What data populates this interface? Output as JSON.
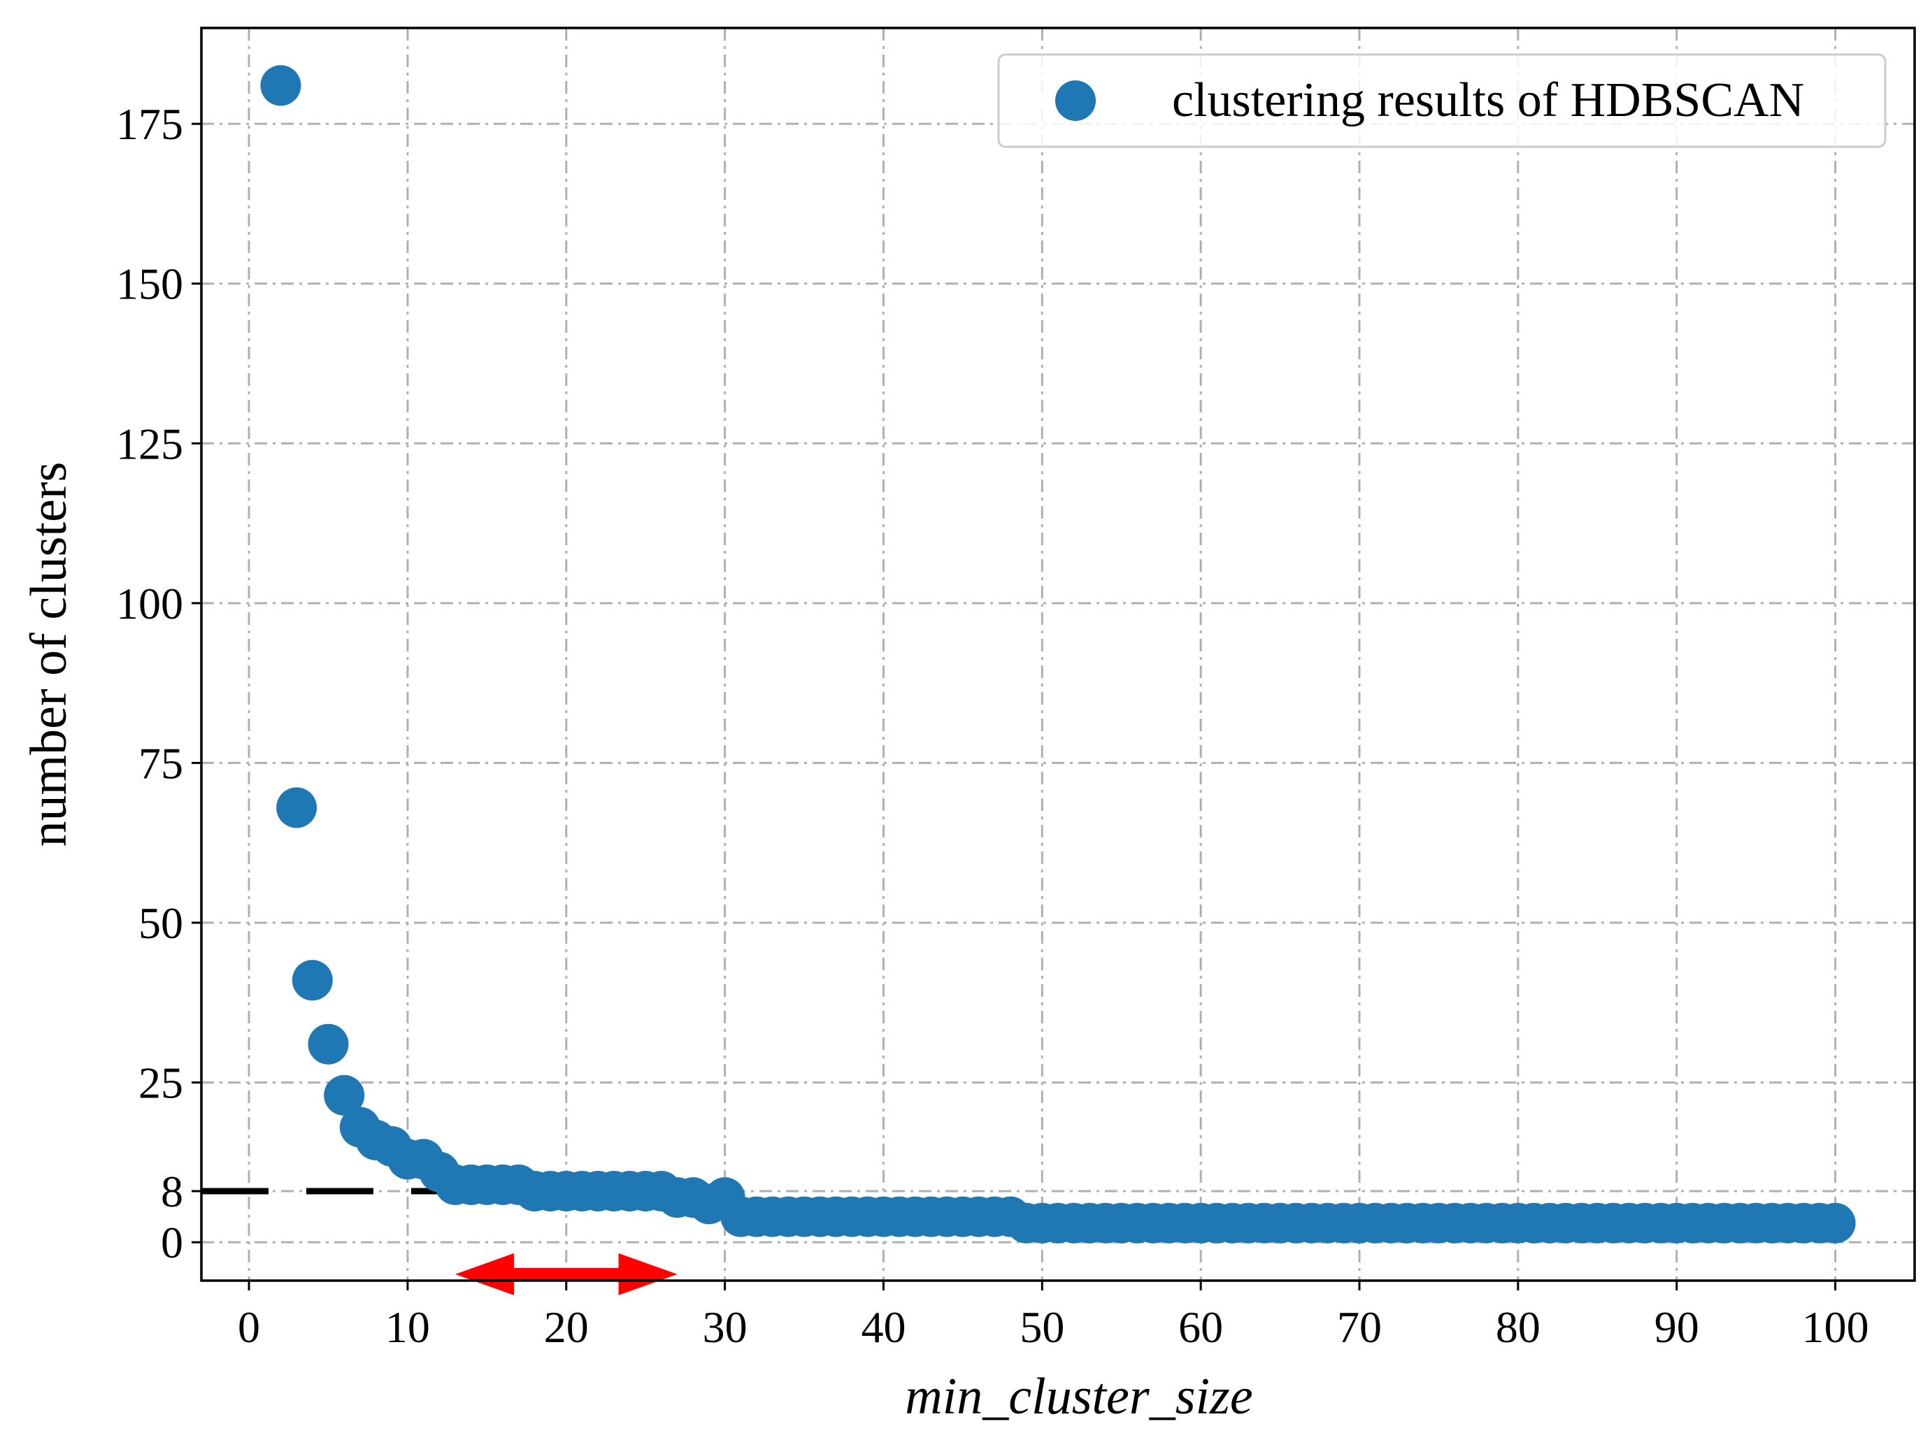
{
  "chart_data": {
    "type": "scatter",
    "xlabel": "min_cluster_size",
    "ylabel": "number of clusters",
    "xlim": [
      -3,
      105
    ],
    "ylim": [
      -6,
      190
    ],
    "xticks": [
      0,
      10,
      20,
      30,
      40,
      50,
      60,
      70,
      80,
      90,
      100
    ],
    "yticks": [
      0,
      8,
      25,
      50,
      75,
      100,
      125,
      150,
      175
    ],
    "grid": true,
    "legend": {
      "placement": "top-right",
      "entries": [
        "clustering results of HDBSCAN"
      ]
    },
    "series": [
      {
        "name": "clustering results of HDBSCAN",
        "color": "#1f77b4",
        "x": [
          2,
          3,
          4,
          5,
          6,
          7,
          8,
          9,
          10,
          11,
          12,
          13,
          14,
          15,
          16,
          17,
          18,
          19,
          20,
          21,
          22,
          23,
          24,
          25,
          26,
          27,
          28,
          29,
          30,
          31,
          32,
          33,
          34,
          35,
          36,
          37,
          38,
          39,
          40,
          41,
          42,
          43,
          44,
          45,
          46,
          47,
          48,
          49,
          50,
          51,
          52,
          53,
          54,
          55,
          56,
          57,
          58,
          59,
          60,
          61,
          62,
          63,
          64,
          65,
          66,
          67,
          68,
          69,
          70,
          71,
          72,
          73,
          74,
          75,
          76,
          77,
          78,
          79,
          80,
          81,
          82,
          83,
          84,
          85,
          86,
          87,
          88,
          89,
          90,
          91,
          92,
          93,
          94,
          95,
          96,
          97,
          98,
          99,
          100
        ],
        "y": [
          181,
          68,
          41,
          31,
          23,
          18,
          16,
          15,
          13,
          13,
          11,
          9,
          9,
          9,
          9,
          9,
          8,
          8,
          8,
          8,
          8,
          8,
          8,
          8,
          8,
          7,
          7,
          6,
          7,
          4,
          4,
          4,
          4,
          4,
          4,
          4,
          4,
          4,
          4,
          4,
          4,
          4,
          4,
          4,
          4,
          4,
          4,
          3,
          3,
          3,
          3,
          3,
          3,
          3,
          3,
          3,
          3,
          3,
          3,
          3,
          3,
          3,
          3,
          3,
          3,
          3,
          3,
          3,
          3,
          3,
          3,
          3,
          3,
          3,
          3,
          3,
          3,
          3,
          3,
          3,
          3,
          3,
          3,
          3,
          3,
          3,
          3,
          3,
          3,
          3,
          3,
          3,
          3,
          3,
          3,
          3,
          3,
          3,
          3
        ]
      }
    ],
    "annotations": [
      {
        "type": "dashed-hline",
        "y": 8,
        "x": [
          -3,
          18
        ],
        "color": "#000000"
      },
      {
        "type": "double-arrow",
        "y": -5,
        "x": [
          13,
          27
        ],
        "color": "#ff0000"
      }
    ]
  }
}
